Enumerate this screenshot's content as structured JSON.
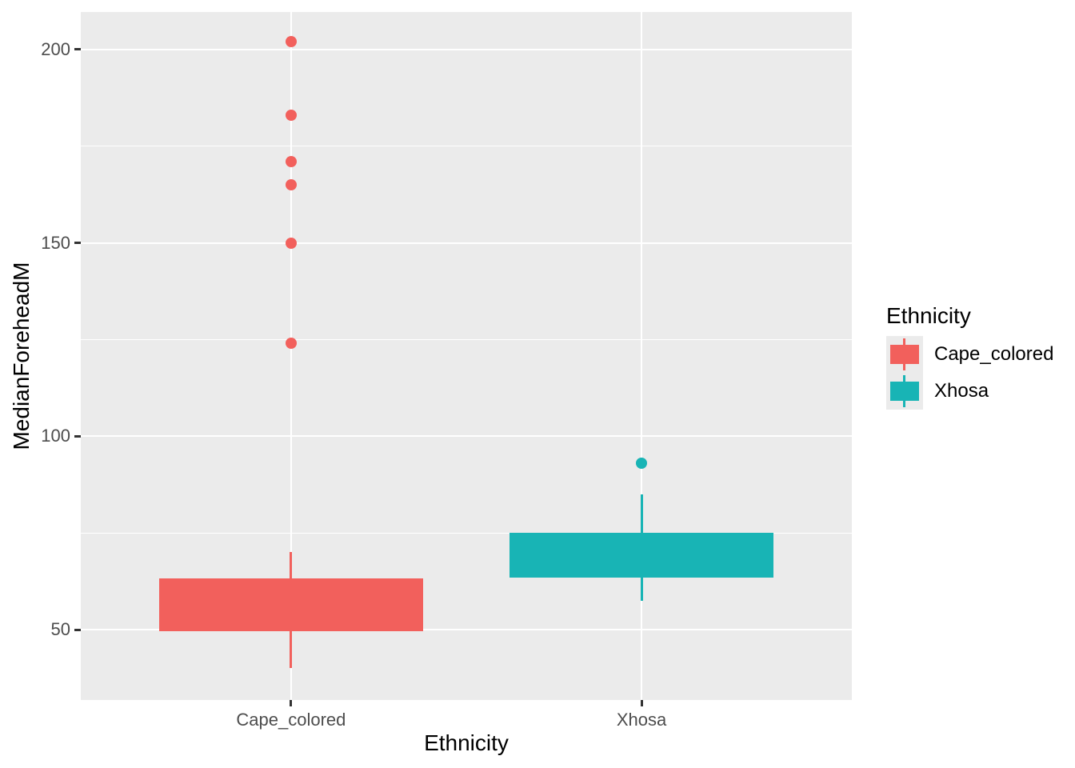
{
  "figure": {
    "background": "#FFFFFF"
  },
  "chart_data": {
    "type": "boxplot",
    "title": "",
    "xlabel": "Ethnicity",
    "ylabel": "MedianForeheadM",
    "categories": [
      "Cape_colored",
      "Xhosa"
    ],
    "y_ticks": [
      50,
      100,
      150,
      200
    ],
    "y_minor_gridlines": [
      75,
      125,
      175
    ],
    "ylim": [
      31.8,
      209.7
    ],
    "grid": "on",
    "panel_background": "#EBEBEB",
    "gridline_color": "#FFFFFF",
    "tick_label_color": "#4D4D4D",
    "tick_mark_color": "#333333",
    "axis_title_color": "#000000",
    "median_line_visible": false,
    "series": [
      {
        "name": "Cape_colored",
        "color": "#F2605C",
        "whisker_low": 40,
        "q1": 49.5,
        "q3": 63.3,
        "whisker_high": 70,
        "outliers": [
          124,
          150,
          165,
          171,
          183,
          202
        ]
      },
      {
        "name": "Xhosa",
        "color": "#18B4B5",
        "whisker_low": 57.5,
        "q1": 63.5,
        "q3": 75,
        "whisker_high": 85,
        "outliers": [
          93
        ]
      }
    ],
    "legend": {
      "title": "Ethnicity",
      "position": "right",
      "entries": [
        {
          "label": "Cape_colored",
          "color": "#F2605C"
        },
        {
          "label": "Xhosa",
          "color": "#18B4B5"
        }
      ]
    }
  }
}
